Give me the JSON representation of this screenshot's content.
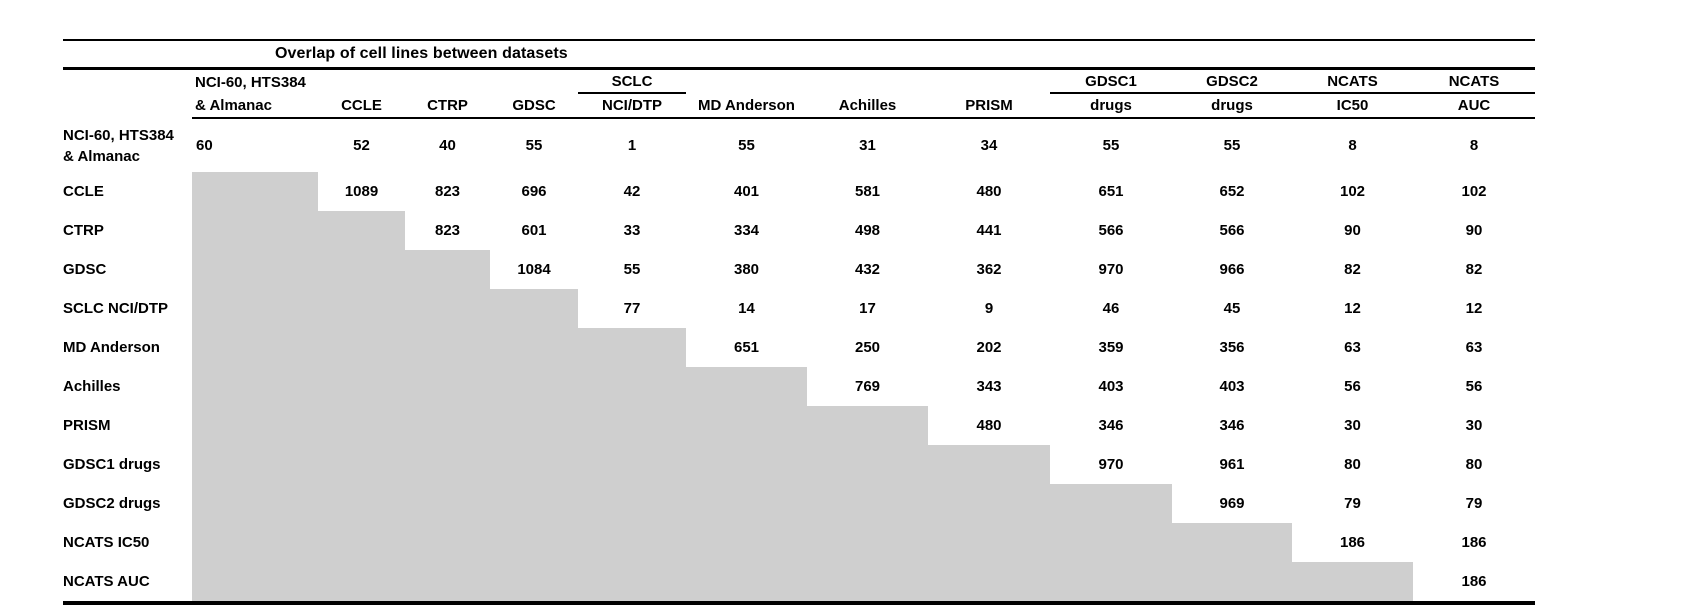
{
  "title": "Overlap of cell lines between datasets",
  "colors": {
    "masked_cell": "#cfcfcf",
    "text": "#000000",
    "background": "#ffffff"
  },
  "table": {
    "columns": [
      {
        "top": "NCI-60, HTS384",
        "bottom": "& Almanac"
      },
      {
        "top": "",
        "bottom": "CCLE"
      },
      {
        "top": "",
        "bottom": "CTRP"
      },
      {
        "top": "",
        "bottom": "GDSC"
      },
      {
        "top": "SCLC",
        "bottom": "NCI/DTP"
      },
      {
        "top": "",
        "bottom": "MD Anderson"
      },
      {
        "top": "",
        "bottom": "Achilles"
      },
      {
        "top": "",
        "bottom": "PRISM"
      },
      {
        "top": "GDSC1",
        "bottom": "drugs"
      },
      {
        "top": "GDSC2",
        "bottom": "drugs"
      },
      {
        "top": "NCATS",
        "bottom": "IC50"
      },
      {
        "top": "NCATS",
        "bottom": "AUC"
      }
    ],
    "rows": [
      {
        "label": "NCI-60, HTS384\n& Almanac",
        "values": [
          60,
          52,
          40,
          55,
          1,
          55,
          31,
          34,
          55,
          55,
          8,
          8
        ]
      },
      {
        "label": "CCLE",
        "values": [
          null,
          1089,
          823,
          696,
          42,
          401,
          581,
          480,
          651,
          652,
          102,
          102
        ]
      },
      {
        "label": "CTRP",
        "values": [
          null,
          null,
          823,
          601,
          33,
          334,
          498,
          441,
          566,
          566,
          90,
          90
        ]
      },
      {
        "label": "GDSC",
        "values": [
          null,
          null,
          null,
          1084,
          55,
          380,
          432,
          362,
          970,
          966,
          82,
          82
        ]
      },
      {
        "label": "SCLC NCI/DTP",
        "values": [
          null,
          null,
          null,
          null,
          77,
          14,
          17,
          9,
          46,
          45,
          12,
          12
        ]
      },
      {
        "label": "MD Anderson",
        "values": [
          null,
          null,
          null,
          null,
          null,
          651,
          250,
          202,
          359,
          356,
          63,
          63
        ]
      },
      {
        "label": "Achilles",
        "values": [
          null,
          null,
          null,
          null,
          null,
          null,
          769,
          343,
          403,
          403,
          56,
          56
        ]
      },
      {
        "label": "PRISM",
        "values": [
          null,
          null,
          null,
          null,
          null,
          null,
          null,
          480,
          346,
          346,
          30,
          30
        ]
      },
      {
        "label": "GDSC1 drugs",
        "values": [
          null,
          null,
          null,
          null,
          null,
          null,
          null,
          null,
          970,
          961,
          80,
          80
        ]
      },
      {
        "label": "GDSC2 drugs",
        "values": [
          null,
          null,
          null,
          null,
          null,
          null,
          null,
          null,
          null,
          969,
          79,
          79
        ]
      },
      {
        "label": "NCATS IC50",
        "values": [
          null,
          null,
          null,
          null,
          null,
          null,
          null,
          null,
          null,
          null,
          186,
          186
        ]
      },
      {
        "label": "NCATS AUC",
        "values": [
          null,
          null,
          null,
          null,
          null,
          null,
          null,
          null,
          null,
          null,
          null,
          186
        ]
      }
    ]
  },
  "chart_data": {
    "type": "table",
    "title": "Overlap of cell lines between datasets",
    "notes": "Upper-triangular overlap matrix; lower triangle shaded gray (no value). Diagonal holds dataset size.",
    "column_headers": [
      "NCI-60, HTS384 & Almanac",
      "CCLE",
      "CTRP",
      "GDSC",
      "SCLC NCI/DTP",
      "MD Anderson",
      "Achilles",
      "PRISM",
      "GDSC1 drugs",
      "GDSC2 drugs",
      "NCATS IC50",
      "NCATS AUC"
    ],
    "row_headers": [
      "NCI-60, HTS384 & Almanac",
      "CCLE",
      "CTRP",
      "GDSC",
      "SCLC NCI/DTP",
      "MD Anderson",
      "Achilles",
      "PRISM",
      "GDSC1 drugs",
      "GDSC2 drugs",
      "NCATS IC50",
      "NCATS AUC"
    ]
  }
}
